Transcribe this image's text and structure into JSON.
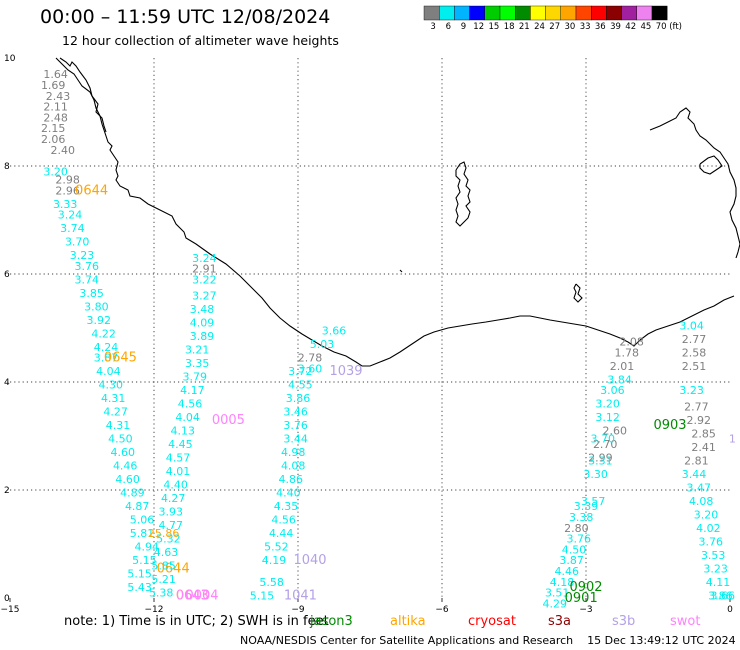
{
  "header": {
    "title": "00:00 – 11:59 UTC 12/08/2024",
    "subtitle": "12 hour collection of altimeter wave heights"
  },
  "scale": {
    "unit": "(ft)",
    "labels": [
      "3",
      "6",
      "9",
      "12",
      "15",
      "18",
      "21",
      "24",
      "27",
      "30",
      "33",
      "36",
      "39",
      "42",
      "45",
      "70"
    ],
    "colors": [
      "#7f7f7f",
      "#00eeee",
      "#00b4ff",
      "#0000ff",
      "#00cd00",
      "#00ff00",
      "#008b00",
      "#ffff00",
      "#ffd700",
      "#ffa500",
      "#ff4500",
      "#ff0000",
      "#8b0000",
      "#a020a0",
      "#ee82ee",
      "#000000"
    ]
  },
  "note": {
    "prefix": "note:  1)  Time is in UTC;  2)  SWH is in feet",
    "satellites": [
      {
        "name": "jason3",
        "color": "#008b00"
      },
      {
        "name": "altika",
        "color": "#ffa500"
      },
      {
        "name": "cryosat",
        "color": "#ff0000"
      },
      {
        "name": "s3a",
        "color": "#8b0000"
      },
      {
        "name": "s3b",
        "color": "#b4a0e6"
      },
      {
        "name": "swot",
        "color": "#ff82ff"
      }
    ]
  },
  "footer": "NOAA/NESDIS Center for Satellite Applications and Research    15 Dec 13:49:12 UTC 2024",
  "chart_data": {
    "type": "scatter",
    "xlim": [
      -15,
      0
    ],
    "ylim": [
      0,
      10
    ],
    "xticks": [
      -15,
      -12,
      -9,
      -6,
      -3,
      0
    ],
    "xtick_labels": [
      "−15",
      "−12",
      "−9",
      "−6",
      "−3",
      "0"
    ],
    "yticks": [
      0,
      2,
      4,
      6,
      8,
      10
    ],
    "ytick_labels": [
      "0",
      "2",
      "4",
      "6",
      "8",
      "10"
    ],
    "grid": true,
    "tracks": [
      {
        "color": "#7f7f7f",
        "x": [
          -14.05,
          -14.1,
          -14.0,
          -14.05,
          -14.05,
          -14.1,
          -14.1,
          -13.9,
          -13.8,
          -13.8
        ],
        "labels": [
          "1.64",
          "1.69",
          "2.43",
          "2.11",
          "2.48",
          "2.15",
          "2.06",
          "2.40",
          "2.98",
          "2.96"
        ],
        "y": [
          9.7,
          9.5,
          9.3,
          9.1,
          8.9,
          8.7,
          8.5,
          8.3,
          7.75,
          7.55
        ]
      },
      {
        "color": "#00eeee",
        "x": [
          -14.05,
          -13.85,
          -13.75,
          -13.7,
          -13.6,
          -13.5,
          -13.4,
          -13.4,
          -13.3,
          -13.2,
          -13.15,
          -13.05,
          -13.0,
          -13.0,
          -12.95,
          -12.9,
          -12.85,
          -12.8,
          -12.75,
          -12.7,
          -12.65,
          -12.6,
          -12.55,
          -12.45,
          -12.35,
          -12.25,
          -12.25,
          -12.15,
          -12.2,
          -12.3,
          -12.3
        ],
        "labels": [
          "3.20",
          "3.33",
          "3.24",
          "3.74",
          "3.70",
          "3.23",
          "3.76",
          "3.74",
          "3.85",
          "3.80",
          "3.92",
          "4.22",
          "4.24",
          "3.87",
          "4.04",
          "4.30",
          "4.31",
          "4.27",
          "4.31",
          "4.50",
          "4.60",
          "4.46",
          "4.60",
          "4.89",
          "4.87",
          "5.06",
          "5.81",
          "4.94",
          "5.15",
          "5.15",
          "5.43"
        ],
        "y": [
          7.9,
          7.3,
          7.1,
          6.85,
          6.6,
          6.35,
          6.15,
          5.9,
          5.65,
          5.4,
          5.15,
          4.9,
          4.65,
          4.45,
          4.2,
          3.95,
          3.7,
          3.45,
          3.2,
          2.95,
          2.7,
          2.45,
          2.2,
          1.95,
          1.7,
          1.45,
          1.2,
          0.95,
          0.7,
          0.45,
          0.2
        ]
      },
      {
        "color": "#ffa500",
        "x": [
          -13.3,
          -12.7,
          -11.8,
          -11.6,
          -11.2
        ],
        "labels": [
          "0644",
          "0645",
          "25.86",
          "0644",
          "0643"
        ],
        "y": [
          7.55,
          4.45,
          1.2,
          0.55,
          0.05
        ]
      },
      {
        "color": "#7f7f7f",
        "x": [
          -10.95
        ],
        "labels": [
          "2.91"
        ],
        "y": [
          6.1
        ]
      },
      {
        "color": "#00eeee",
        "x": [
          -10.95,
          -10.95,
          -10.95,
          -11.0,
          -11.0,
          -11.0,
          -11.1,
          -11.1,
          -11.15,
          -11.2,
          -11.25,
          -11.3,
          -11.4,
          -11.45,
          -11.5,
          -11.5,
          -11.55,
          -11.6,
          -11.65,
          -11.65,
          -11.7,
          -11.75,
          -11.8,
          -11.8,
          -11.85
        ],
        "labels": [
          "3.24",
          "3.22",
          "3.27",
          "3.48",
          "4.09",
          "3.89",
          "3.21",
          "3.35",
          "3.79",
          "4.17",
          "4.56",
          "4.04",
          "4.13",
          "4.45",
          "4.57",
          "4.01",
          "4.40",
          "4.27",
          "3.93",
          "4.77",
          "5.32",
          "4.63",
          "5.85",
          "5.21",
          "5.38"
        ],
        "y": [
          6.3,
          5.9,
          5.6,
          5.35,
          5.1,
          4.85,
          4.6,
          4.35,
          4.1,
          3.85,
          3.6,
          3.35,
          3.1,
          2.85,
          2.6,
          2.35,
          2.1,
          1.85,
          1.6,
          1.35,
          1.1,
          0.85,
          0.6,
          0.35,
          0.1
        ]
      },
      {
        "color": "#ff82ff",
        "x": [
          -10.45,
          -11.2,
          -11.0
        ],
        "labels": [
          "0005",
          "0643",
          "0004"
        ],
        "y": [
          3.3,
          0.05,
          0.05
        ]
      },
      {
        "color": "#00eeee",
        "x": [
          -8.25,
          -8.5,
          -8.75,
          -8.95,
          -8.95,
          -9.0,
          -9.05,
          -9.05,
          -9.05,
          -9.1,
          -9.1,
          -9.15,
          -9.2,
          -9.25,
          -9.3,
          -9.35,
          -9.45,
          -9.5,
          -9.55,
          -9.75
        ],
        "labels": [
          "3.66",
          "5.03",
          "3.60",
          "3.72",
          "4.55",
          "3.86",
          "3.46",
          "3.76",
          "3.44",
          "4.98",
          "4.08",
          "4.86",
          "4.40",
          "4.35",
          "4.56",
          "4.44",
          "5.52",
          "4.19",
          "5.58",
          "5.15"
        ],
        "y": [
          4.95,
          4.7,
          4.25,
          4.2,
          3.95,
          3.7,
          3.45,
          3.2,
          2.95,
          2.7,
          2.45,
          2.2,
          1.95,
          1.7,
          1.45,
          1.2,
          0.95,
          0.7,
          0.3,
          0.05
        ]
      },
      {
        "color": "#7f7f7f",
        "x": [
          -8.75
        ],
        "labels": [
          "2.78"
        ],
        "y": [
          4.45
        ]
      },
      {
        "color": "#b4a0e6",
        "x": [
          -8.0,
          -8.75,
          -8.95
        ],
        "labels": [
          "1039",
          "1040",
          "1041"
        ],
        "y": [
          4.2,
          0.7,
          0.05
        ]
      },
      {
        "color": "#7f7f7f",
        "x": [
          -2.05,
          -2.15,
          -2.25,
          -2.4,
          -2.6,
          -2.7,
          -3.2
        ],
        "labels": [
          "2.08",
          "1.78",
          "2.01",
          "2.60",
          "2.70",
          "2.99",
          "2.80"
        ],
        "y": [
          4.75,
          4.55,
          4.3,
          3.1,
          2.85,
          2.6,
          1.3
        ]
      },
      {
        "color": "#00eeee",
        "x": [
          -2.3,
          -2.45,
          -2.55,
          -2.55,
          -2.65,
          -2.7,
          -2.8,
          -2.85,
          -3.0,
          -3.1,
          -3.15,
          -3.25,
          -3.3,
          -3.4,
          -3.5,
          -3.6,
          -3.65
        ],
        "labels": [
          "3.84",
          "3.06",
          "3.20",
          "3.12",
          "3.70",
          "3.31",
          "3.30",
          "3.57",
          "3.39",
          "3.38",
          "3.76",
          "4.50",
          "3.87",
          "4.46",
          "4.18",
          "3.51",
          "4.29"
        ],
        "y": [
          4.05,
          3.85,
          3.6,
          3.35,
          2.95,
          2.55,
          2.3,
          1.8,
          1.7,
          1.5,
          1.1,
          0.9,
          0.7,
          0.5,
          0.3,
          0.1,
          -0.1
        ]
      },
      {
        "color": "#008b00",
        "x": [
          -1.25,
          -3.0,
          -3.1
        ],
        "labels": [
          "0903",
          "0902",
          "0901"
        ],
        "y": [
          3.2,
          0.2,
          0.0
        ]
      },
      {
        "color": "#00eeee",
        "x": [
          -0.8,
          -0.8,
          -0.75,
          -0.65,
          -0.6,
          -0.5,
          -0.45,
          -0.4,
          -0.35,
          -0.3,
          -0.25,
          -0.2,
          -0.15
        ],
        "labels": [
          "3.04",
          "3.23",
          "3.44",
          "3.47",
          "4.08",
          "3.20",
          "4.02",
          "3.76",
          "3.53",
          "3.23",
          "4.11",
          "3.86",
          "3.66"
        ],
        "y": [
          5.05,
          3.85,
          2.3,
          2.05,
          1.8,
          1.55,
          1.3,
          1.05,
          0.8,
          0.55,
          0.3,
          0.05,
          0.05
        ]
      },
      {
        "color": "#7f7f7f",
        "x": [
          -0.75,
          -0.75,
          -0.75,
          -0.7,
          -0.65,
          -0.55,
          -0.55
        ],
        "labels": [
          "2.77",
          "2.58",
          "2.51",
          "2.77",
          "2.92",
          "2.85",
          "2.41"
        ],
        "y": [
          4.8,
          4.55,
          4.3,
          3.55,
          3.3,
          3.05,
          2.8
        ]
      },
      {
        "color": "#7f7f7f",
        "x": [
          -0.7
        ],
        "labels": [
          "2.81"
        ],
        "y": [
          2.55
        ]
      },
      {
        "color": "#b4a0e6",
        "x": [
          0.05
        ],
        "labels": [
          "1"
        ],
        "y": [
          2.95
        ]
      }
    ]
  }
}
